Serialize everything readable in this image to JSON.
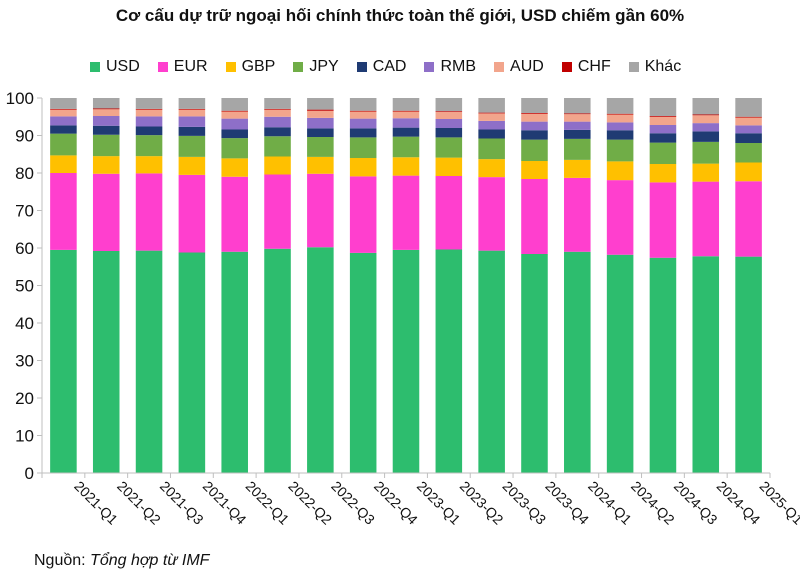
{
  "chart_data": {
    "type": "bar",
    "stacked": true,
    "title": "Cơ cấu dự trữ ngoại hối chính thức toàn thế giới, USD chiếm gần 60%",
    "categories": [
      "2021-Q1",
      "2021-Q2",
      "2021-Q3",
      "2021-Q4",
      "2022-Q1",
      "2022-Q2",
      "2022-Q3",
      "2022-Q4",
      "2023-Q1",
      "2023-Q2",
      "2023-Q3",
      "2023-Q4",
      "2024-Q1",
      "2024-Q2",
      "2024-Q3",
      "2024-Q4",
      "2025-Q1"
    ],
    "ylim": [
      0,
      100
    ],
    "yticks": [
      0,
      10,
      20,
      30,
      40,
      50,
      60,
      70,
      80,
      90,
      100
    ],
    "grid": false,
    "legend_position": "top",
    "series": [
      {
        "name": "USD",
        "color": "#2dbd6e",
        "values": [
          59.5,
          59.2,
          59.3,
          58.8,
          59.0,
          59.8,
          60.2,
          58.7,
          59.5,
          59.6,
          59.3,
          58.4,
          59.0,
          58.2,
          57.4,
          57.8,
          57.7
        ]
      },
      {
        "name": "EUR",
        "color": "#ff3fce",
        "values": [
          20.5,
          20.6,
          20.6,
          20.7,
          20.0,
          19.8,
          19.6,
          20.4,
          19.8,
          19.6,
          19.6,
          20.0,
          19.7,
          19.9,
          20.1,
          19.9,
          20.1
        ]
      },
      {
        "name": "GBP",
        "color": "#ffc000",
        "values": [
          4.7,
          4.7,
          4.6,
          4.8,
          4.9,
          4.8,
          4.5,
          4.9,
          4.9,
          4.9,
          4.8,
          4.8,
          4.8,
          5.0,
          4.9,
          4.8,
          5.0
        ]
      },
      {
        "name": "JPY",
        "color": "#70ad47",
        "values": [
          5.8,
          5.7,
          5.6,
          5.6,
          5.4,
          5.4,
          5.3,
          5.5,
          5.5,
          5.4,
          5.5,
          5.7,
          5.6,
          5.8,
          5.7,
          5.8,
          5.2
        ]
      },
      {
        "name": "CAD",
        "color": "#1f3b73",
        "values": [
          2.2,
          2.4,
          2.3,
          2.4,
          2.3,
          2.4,
          2.3,
          2.4,
          2.4,
          2.5,
          2.4,
          2.5,
          2.4,
          2.5,
          2.5,
          2.8,
          2.6
        ]
      },
      {
        "name": "RMB",
        "color": "#8e6fc8",
        "values": [
          2.4,
          2.6,
          2.7,
          2.8,
          2.9,
          2.8,
          2.8,
          2.6,
          2.5,
          2.4,
          2.3,
          2.3,
          2.2,
          2.1,
          2.2,
          2.2,
          2.1
        ]
      },
      {
        "name": "AUD",
        "color": "#f2a58c",
        "values": [
          1.8,
          1.8,
          1.8,
          1.8,
          1.9,
          1.9,
          1.9,
          1.9,
          1.8,
          1.9,
          2.0,
          2.1,
          2.0,
          2.1,
          2.2,
          2.1,
          2.1
        ]
      },
      {
        "name": "CHF",
        "color": "#c00000",
        "values": [
          0.2,
          0.2,
          0.2,
          0.2,
          0.2,
          0.2,
          0.3,
          0.2,
          0.2,
          0.2,
          0.2,
          0.2,
          0.2,
          0.2,
          0.2,
          0.2,
          0.2
        ]
      },
      {
        "name": "Khác",
        "color": "#a6a6a6",
        "values": [
          2.9,
          2.8,
          2.9,
          2.9,
          3.4,
          2.9,
          3.1,
          3.4,
          3.4,
          3.5,
          3.9,
          4.0,
          4.1,
          4.2,
          4.8,
          4.4,
          5.0
        ]
      }
    ]
  },
  "source": {
    "label": "Nguồn:",
    "text": "Tổng hợp từ IMF"
  }
}
